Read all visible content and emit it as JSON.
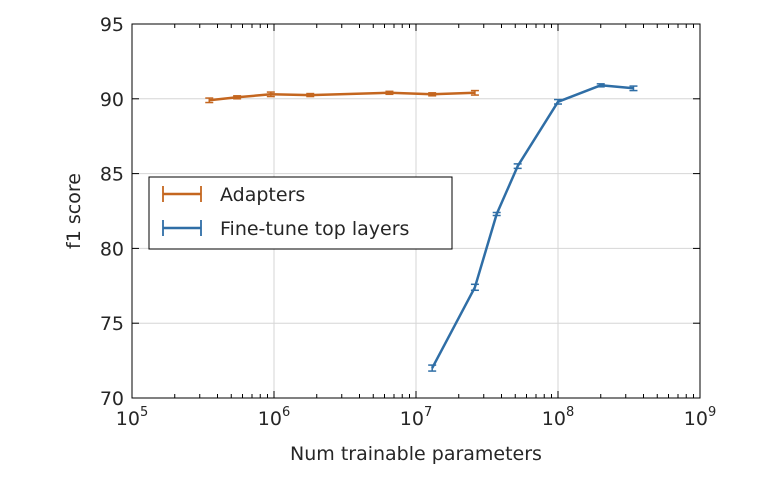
{
  "chart_data": {
    "type": "line",
    "title": "",
    "xlabel": "Num trainable parameters",
    "ylabel": "f1 score",
    "xscale": "log",
    "xlim": [
      100000,
      1000000000
    ],
    "ylim": [
      70,
      95
    ],
    "x_ticks": [
      {
        "base": "10",
        "exp": "5",
        "value": 100000
      },
      {
        "base": "10",
        "exp": "6",
        "value": 1000000
      },
      {
        "base": "10",
        "exp": "7",
        "value": 10000000
      },
      {
        "base": "10",
        "exp": "8",
        "value": 100000000
      },
      {
        "base": "10",
        "exp": "9",
        "value": 1000000000
      }
    ],
    "y_ticks": [
      {
        "label": "70",
        "value": 70
      },
      {
        "label": "75",
        "value": 75
      },
      {
        "label": "80",
        "value": 80
      },
      {
        "label": "85",
        "value": 85
      },
      {
        "label": "90",
        "value": 90
      },
      {
        "label": "95",
        "value": 95
      }
    ],
    "grid": true,
    "legend_position": "center-left",
    "series": [
      {
        "name": "Adapters",
        "color": "#c4661f",
        "points": [
          {
            "x": 350000,
            "y": 89.9,
            "err": 0.15
          },
          {
            "x": 550000,
            "y": 90.1,
            "err": 0.1
          },
          {
            "x": 950000,
            "y": 90.3,
            "err": 0.15
          },
          {
            "x": 1800000,
            "y": 90.25,
            "err": 0.1
          },
          {
            "x": 6500000,
            "y": 90.4,
            "err": 0.1
          },
          {
            "x": 13000000,
            "y": 90.3,
            "err": 0.1
          },
          {
            "x": 26000000,
            "y": 90.4,
            "err": 0.15
          }
        ]
      },
      {
        "name": "Fine-tune top layers",
        "color": "#2f6ea6",
        "points": [
          {
            "x": 13000000,
            "y": 72.0,
            "err": 0.2
          },
          {
            "x": 26000000,
            "y": 77.4,
            "err": 0.2
          },
          {
            "x": 37000000,
            "y": 82.3,
            "err": 0.1
          },
          {
            "x": 52000000,
            "y": 85.5,
            "err": 0.15
          },
          {
            "x": 100000000,
            "y": 89.8,
            "err": 0.15
          },
          {
            "x": 200000000,
            "y": 90.9,
            "err": 0.1
          },
          {
            "x": 340000000,
            "y": 90.7,
            "err": 0.15
          }
        ]
      }
    ]
  }
}
